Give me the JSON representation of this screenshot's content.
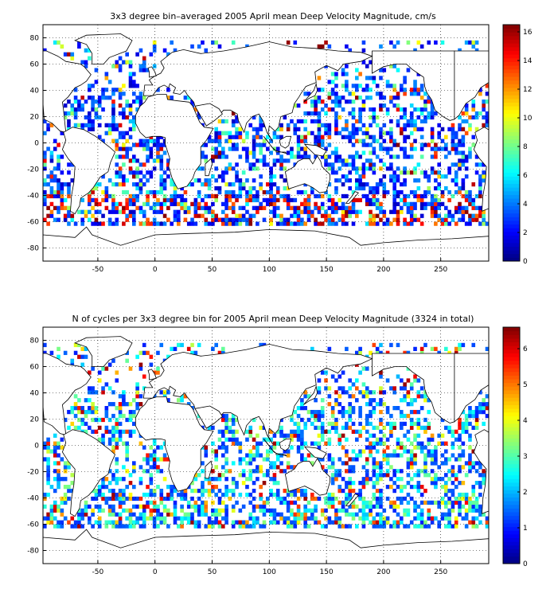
{
  "chart_data": [
    {
      "type": "heatmap",
      "title": "3x3 degree bin–averaged 2005 April mean Deep Velocity Magnitude, cm/s",
      "xlabel": "",
      "ylabel": "",
      "xlim": [
        -98,
        292
      ],
      "ylim": [
        -90,
        90
      ],
      "x_ticks": [
        -50,
        0,
        50,
        100,
        150,
        200,
        250
      ],
      "y_ticks": [
        80,
        60,
        40,
        20,
        0,
        -20,
        -40,
        -60,
        -80
      ],
      "grid": true,
      "bin_size_deg": 3,
      "colorbar": {
        "min": 0,
        "max": 16.5,
        "ticks": [
          0,
          2,
          4,
          6,
          8,
          10,
          12,
          14,
          16
        ],
        "colormap": "jet"
      },
      "seed": 20050401
    },
    {
      "type": "heatmap",
      "title": "N of cycles per 3x3 degree bin for 2005 April mean Deep Velocity Magnitude (3324 in total)",
      "xlabel": "",
      "ylabel": "",
      "xlim": [
        -98,
        292
      ],
      "ylim": [
        -90,
        90
      ],
      "x_ticks": [
        -50,
        0,
        50,
        100,
        150,
        200,
        250
      ],
      "y_ticks": [
        80,
        60,
        40,
        20,
        0,
        -20,
        -40,
        -60,
        -80
      ],
      "grid": true,
      "bin_size_deg": 3,
      "total_cycles": 3324,
      "colorbar": {
        "min": 0,
        "max": 6.6,
        "ticks": [
          0,
          1,
          2,
          3,
          4,
          5,
          6
        ],
        "colormap": "jet"
      },
      "seed": 9923
    }
  ]
}
